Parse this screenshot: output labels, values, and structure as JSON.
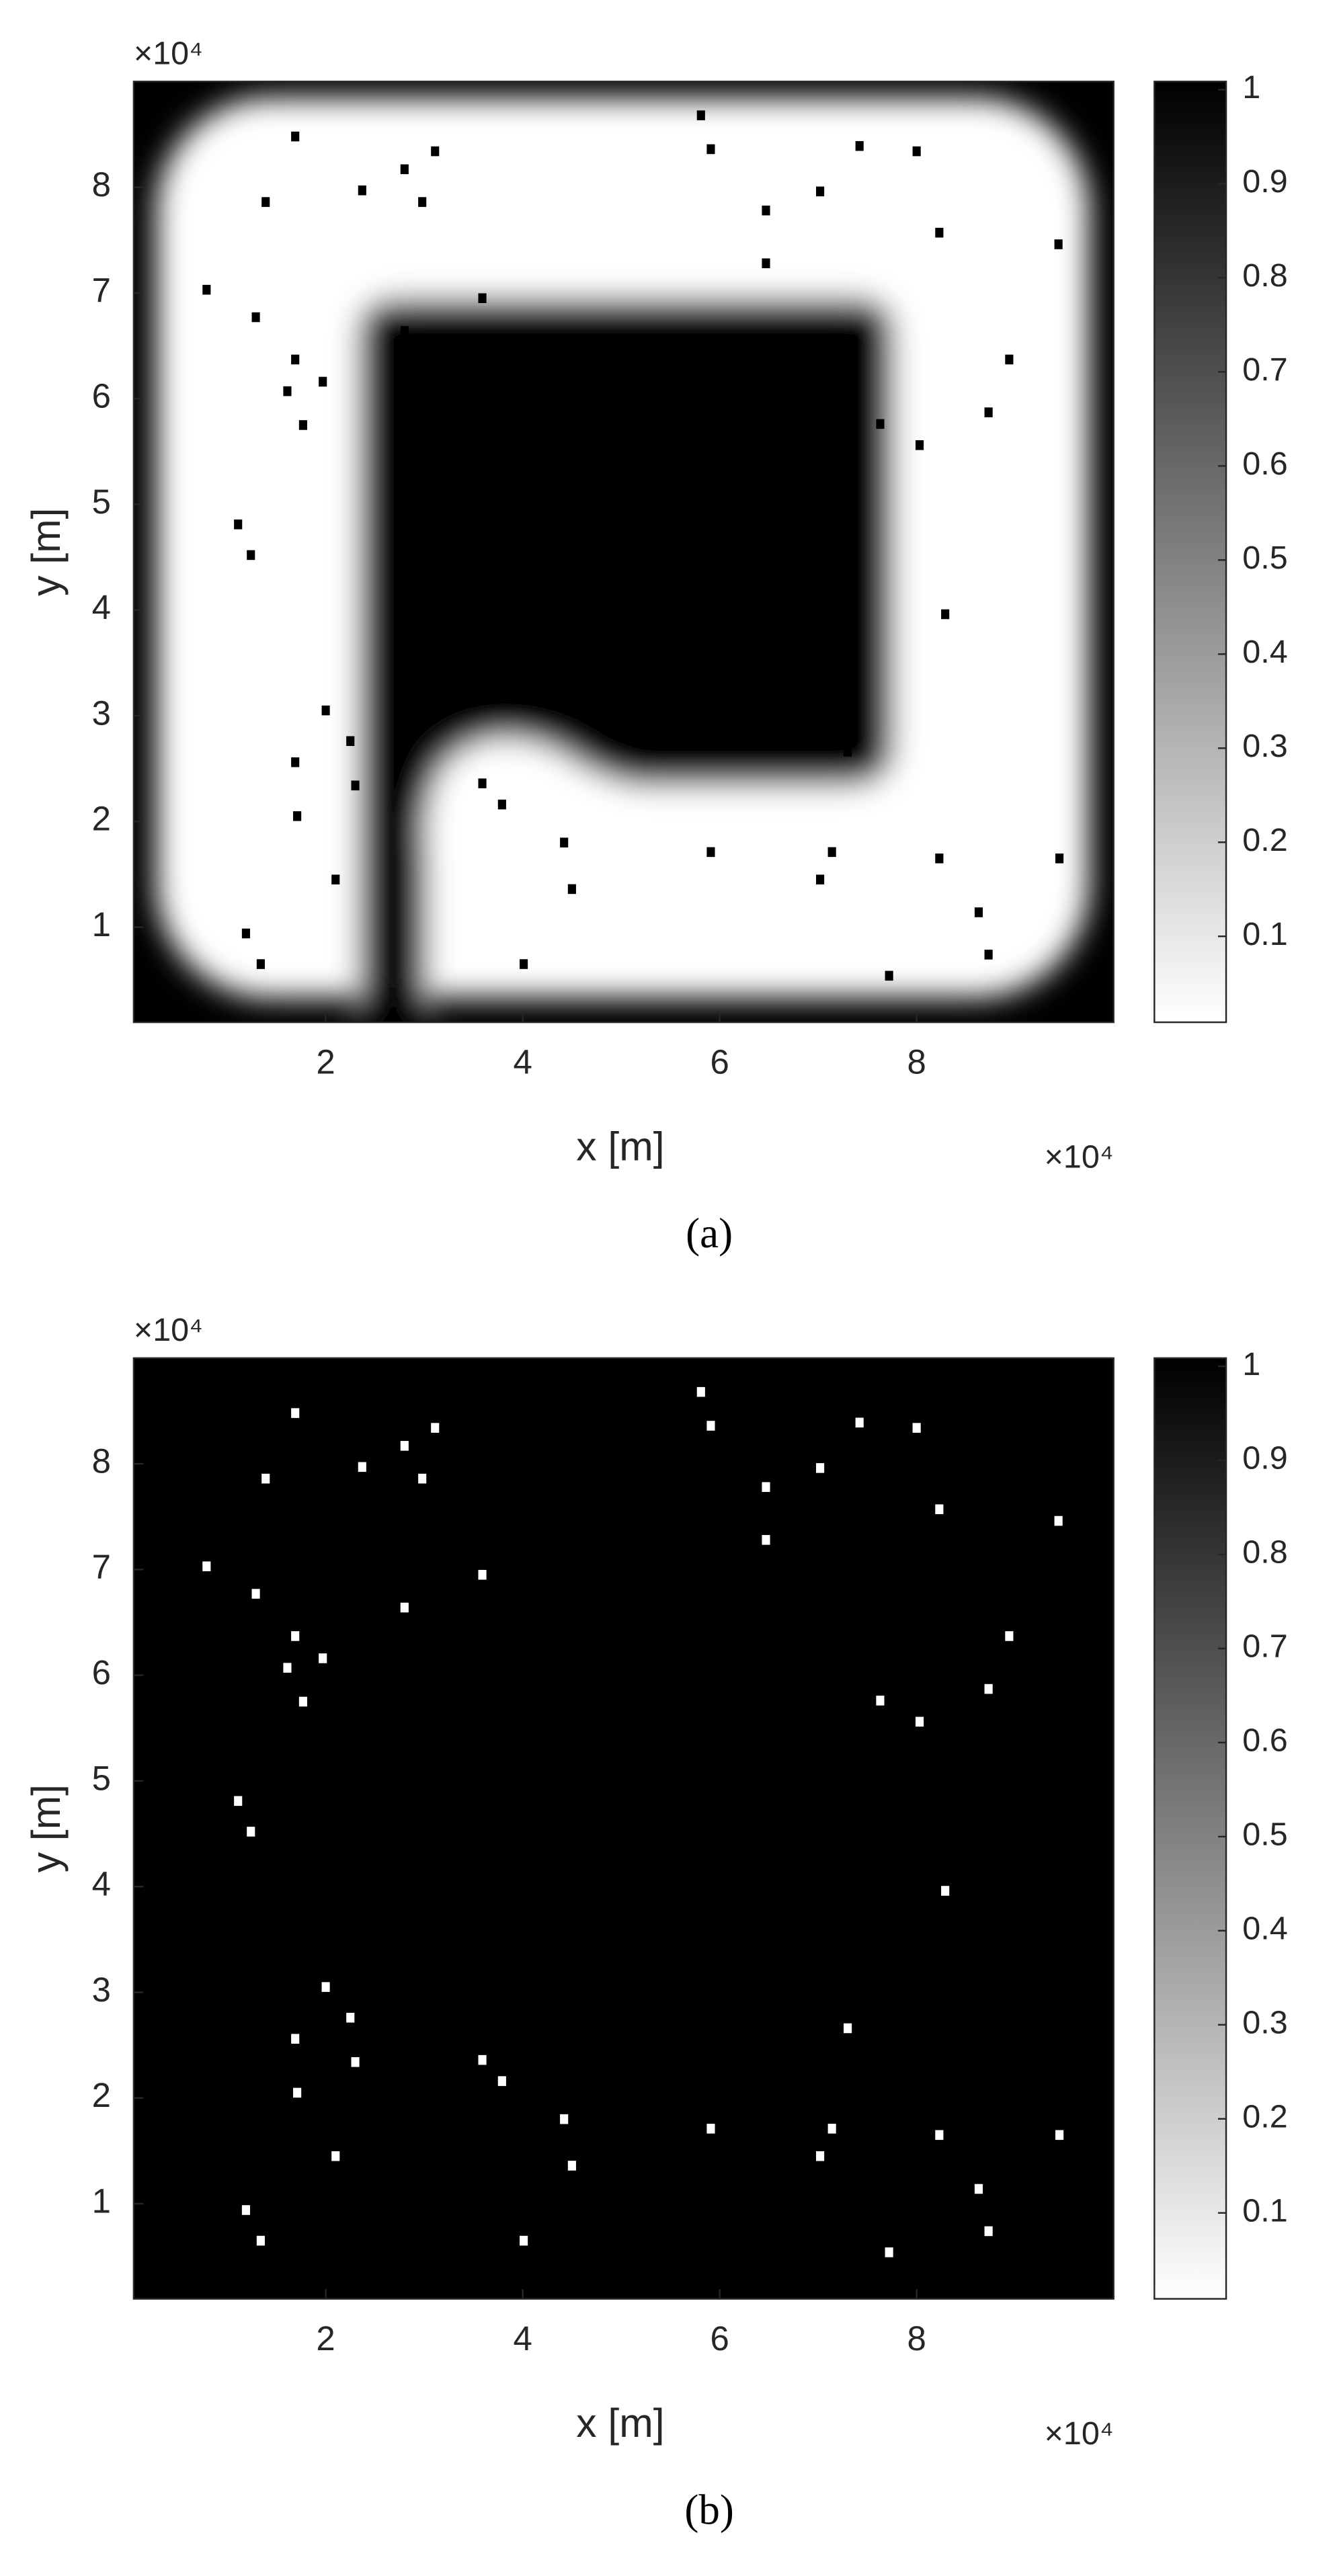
{
  "chart_data": [
    {
      "type": "heatmap",
      "caption": "(a)",
      "x_label": "x [m]",
      "y_label": "y [m]",
      "x_exponent": "×10⁴",
      "y_exponent": "×10⁴",
      "xlim": [
        0.05,
        10
      ],
      "ylim": [
        0.1,
        9.0
      ],
      "xticks": [
        2,
        4,
        6,
        8
      ],
      "yticks": [
        1,
        2,
        3,
        4,
        5,
        6,
        7,
        8
      ],
      "clim": [
        0,
        1
      ],
      "cticks": [
        0.1,
        0.2,
        0.3,
        0.4,
        0.5,
        0.6,
        0.7,
        0.8,
        0.9,
        1
      ],
      "marker_color": "#000000",
      "points": {
        "x": [
          1.69,
          1.39,
          2.37,
          2.8,
          3.11,
          2.98,
          5.81,
          5.91,
          7.42,
          8.0,
          7.02,
          6.47,
          6.47,
          8.23,
          9.44,
          0.79,
          1.29,
          3.59,
          2.8,
          1.69,
          1.61,
          1.97,
          1.77,
          8.94,
          8.73,
          7.63,
          8.03,
          1.11,
          1.24,
          8.29,
          2.0,
          2.25,
          1.69,
          2.3,
          3.59,
          3.79,
          1.71,
          4.42,
          4.5,
          5.91,
          7.14,
          7.02,
          8.23,
          9.45,
          2.1,
          8.63,
          1.19,
          1.34,
          4.01,
          7.72,
          8.73,
          7.3
        ],
        "y": [
          8.48,
          7.86,
          7.97,
          8.17,
          8.34,
          7.86,
          8.68,
          8.36,
          8.39,
          8.34,
          7.96,
          7.78,
          7.28,
          7.57,
          7.46,
          7.03,
          6.77,
          6.95,
          6.64,
          6.37,
          6.07,
          6.16,
          5.75,
          6.37,
          5.87,
          5.76,
          5.56,
          4.81,
          4.52,
          3.96,
          3.05,
          2.76,
          2.56,
          2.34,
          2.36,
          2.16,
          2.05,
          1.8,
          1.36,
          1.71,
          1.71,
          1.45,
          1.65,
          1.65,
          1.45,
          1.14,
          0.94,
          0.65,
          0.65,
          0.54,
          0.74,
          2.66
        ]
      }
    },
    {
      "type": "heatmap",
      "caption": "(b)",
      "x_label": "x [m]",
      "y_label": "y [m]",
      "x_exponent": "×10⁴",
      "y_exponent": "×10⁴",
      "xlim": [
        0.05,
        10
      ],
      "ylim": [
        0.1,
        9.0
      ],
      "xticks": [
        2,
        4,
        6,
        8
      ],
      "yticks": [
        1,
        2,
        3,
        4,
        5,
        6,
        7,
        8
      ],
      "clim": [
        0,
        1
      ],
      "cticks": [
        0.1,
        0.2,
        0.3,
        0.4,
        0.5,
        0.6,
        0.7,
        0.8,
        0.9,
        1
      ],
      "marker_color": "#ffffff",
      "points": {
        "x": [
          1.69,
          1.39,
          2.37,
          2.8,
          3.11,
          2.98,
          5.81,
          5.91,
          7.42,
          8.0,
          7.02,
          6.47,
          6.47,
          8.23,
          9.44,
          0.79,
          1.29,
          3.59,
          2.8,
          1.69,
          1.61,
          1.97,
          1.77,
          8.94,
          8.73,
          7.63,
          8.03,
          1.11,
          1.24,
          8.29,
          2.0,
          2.25,
          1.69,
          2.3,
          3.59,
          3.79,
          1.71,
          4.42,
          4.5,
          5.91,
          7.14,
          7.02,
          8.23,
          9.45,
          2.1,
          8.63,
          1.19,
          1.34,
          4.01,
          7.72,
          8.73,
          7.3
        ],
        "y": [
          8.48,
          7.86,
          7.97,
          8.17,
          8.34,
          7.86,
          8.68,
          8.36,
          8.39,
          8.34,
          7.96,
          7.78,
          7.28,
          7.57,
          7.46,
          7.03,
          6.77,
          6.95,
          6.64,
          6.37,
          6.07,
          6.16,
          5.75,
          6.37,
          5.87,
          5.76,
          5.56,
          4.81,
          4.52,
          3.96,
          3.05,
          2.76,
          2.56,
          2.34,
          2.36,
          2.16,
          2.05,
          1.8,
          1.36,
          1.71,
          1.71,
          1.45,
          1.65,
          1.65,
          1.45,
          1.14,
          0.94,
          0.65,
          0.65,
          0.54,
          0.74,
          2.66
        ]
      }
    }
  ]
}
